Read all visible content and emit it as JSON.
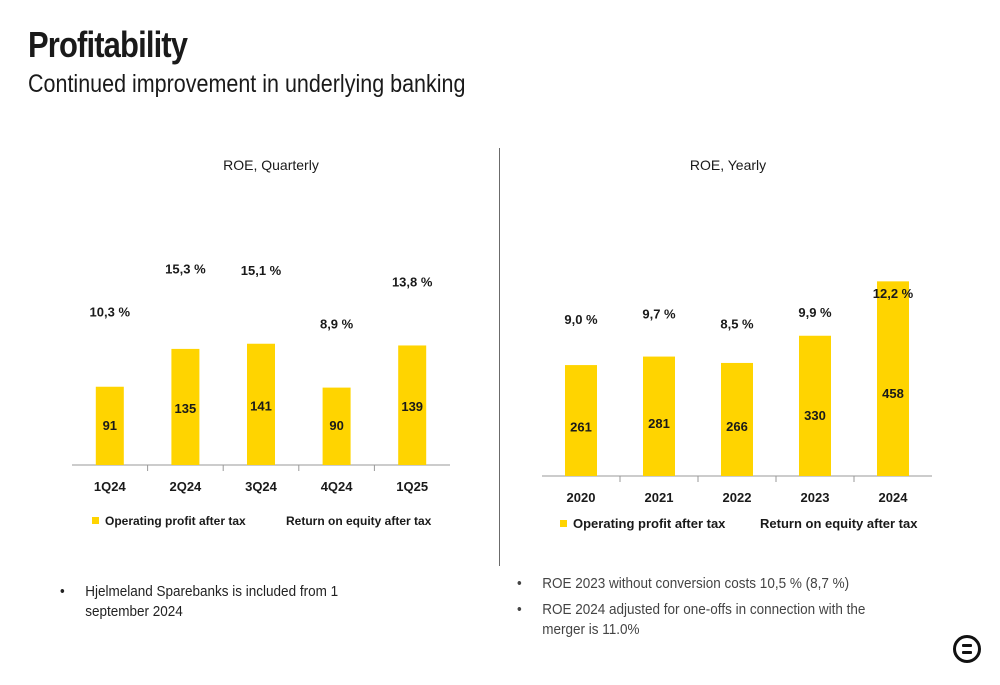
{
  "slide": {
    "title": "Profitability",
    "subtitle": "Continued improvement in underlying banking"
  },
  "colors": {
    "bar": "#FFD400",
    "axis": "#999999",
    "text": "#1a1a1a"
  },
  "notes_left": [
    "Hjelmeland Sparebanks is included from 1 september 2024"
  ],
  "notes_right": [
    "ROE 2023 without conversion costs 10,5 % (8,7 %)",
    "ROE 2024 adjusted for one-offs in connection with the merger is 11.0%"
  ],
  "logo": "sparebank-logo-icon",
  "chart_data": [
    {
      "type": "bar",
      "title": "ROE, Quarterly",
      "categories": [
        "1Q24",
        "2Q24",
        "3Q24",
        "4Q24",
        "1Q25"
      ],
      "series": [
        {
          "name": "Operating profit after tax",
          "values": [
            91,
            135,
            141,
            90,
            139
          ]
        },
        {
          "name": "Return on equity after tax",
          "values": [
            10.3,
            15.3,
            15.1,
            8.9,
            13.8
          ],
          "labels": [
            "10,3 %",
            "15,3 %",
            "15,1 %",
            "8,9 %",
            "13,8 %"
          ]
        }
      ],
      "legend": "bottom",
      "grid": false
    },
    {
      "type": "bar",
      "title": "ROE, Yearly",
      "categories": [
        "2020",
        "2021",
        "2022",
        "2023",
        "2024"
      ],
      "series": [
        {
          "name": "Operating profit after tax",
          "values": [
            261,
            281,
            266,
            330,
            458
          ]
        },
        {
          "name": "Return on equity after tax",
          "values": [
            9.0,
            9.7,
            8.5,
            9.9,
            12.2
          ],
          "labels": [
            "9,0 %",
            "9,7 %",
            "8,5 %",
            "9,9 %",
            "12,2 %"
          ]
        }
      ],
      "legend": "bottom",
      "grid": false
    }
  ]
}
